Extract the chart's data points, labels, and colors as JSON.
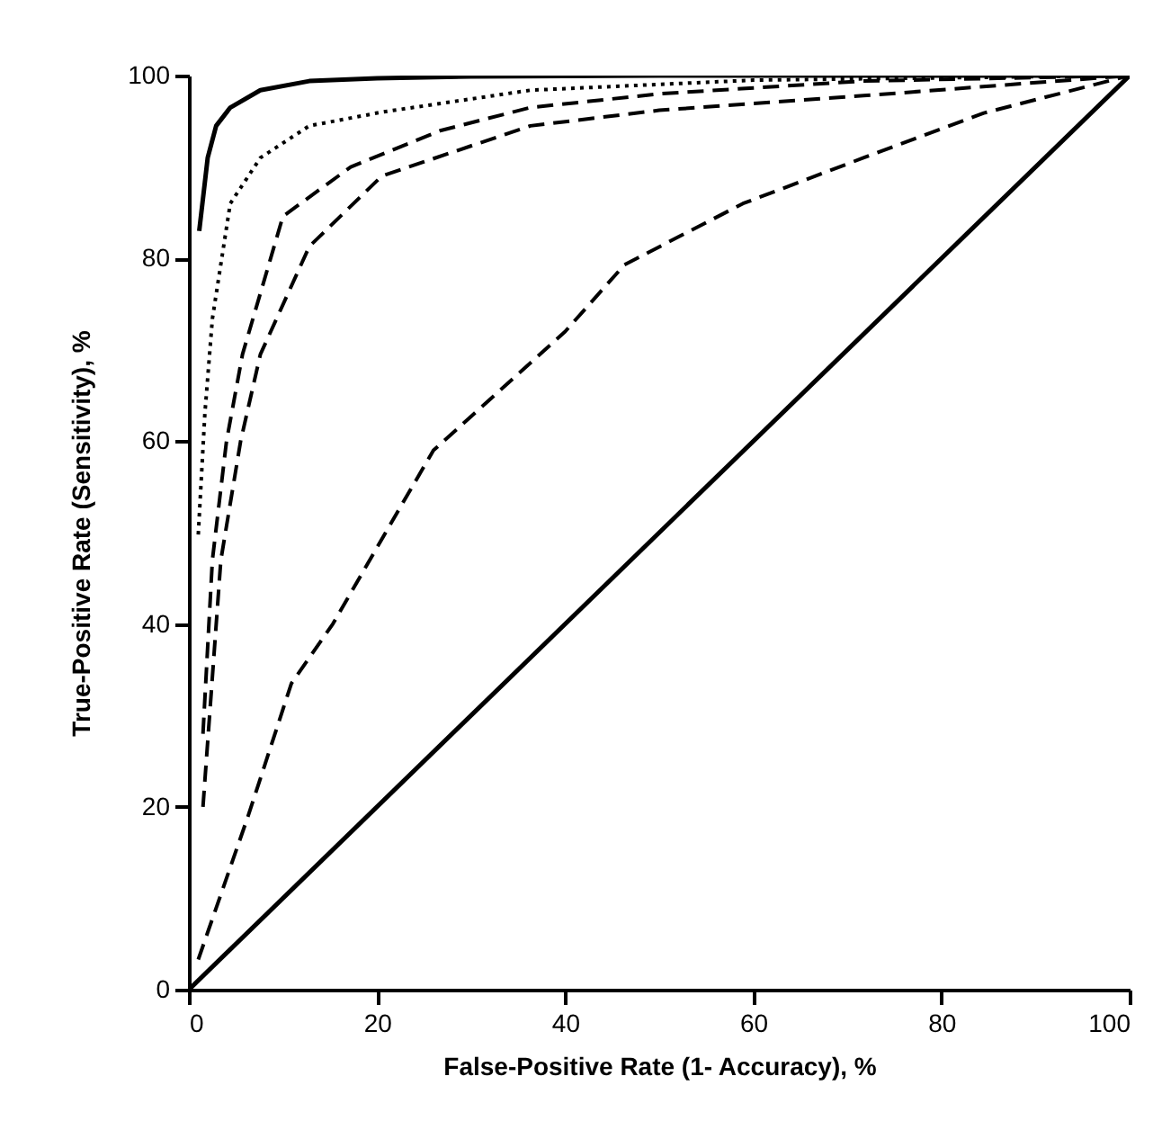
{
  "chart_data": {
    "type": "line",
    "xlabel": "False-Positive Rate (1- Accuracy), %",
    "ylabel": "True-Positive Rate (Sensitivity), %",
    "xlim": [
      0,
      100
    ],
    "ylim": [
      0,
      100
    ],
    "xticks": [
      0,
      20,
      40,
      60,
      80,
      100
    ],
    "yticks": [
      0,
      20,
      40,
      60,
      80,
      100
    ],
    "grid": false,
    "marker": "none",
    "series": [
      {
        "color": "#000000",
        "line_style": "solid",
        "x": [
          1.1,
          2,
          2.9,
          4.4,
          7.6,
          12.8,
          20,
          30,
          50,
          100
        ],
        "values": [
          83,
          91,
          94.5,
          96.5,
          98.4,
          99.4,
          99.7,
          99.9,
          100,
          100
        ]
      },
      {
        "color": "#000000",
        "line_style": "dotted",
        "x": [
          1,
          1.7,
          2.5,
          4.4,
          7.6,
          12.8,
          20.5,
          36.3,
          60,
          100
        ],
        "values": [
          49.8,
          63,
          73.4,
          86,
          91,
          94.5,
          96,
          98.4,
          99.5,
          100
        ]
      },
      {
        "color": "#000000",
        "line_style": "dashed",
        "x": [
          1.5,
          2.5,
          4,
          5.7,
          10,
          17.2,
          26.8,
          36.3,
          50,
          71.7,
          100
        ],
        "values": [
          28,
          47,
          60,
          69.5,
          84.6,
          90,
          94,
          96.5,
          98,
          99.4,
          100
        ]
      },
      {
        "color": "#000000",
        "line_style": "dashed",
        "x": [
          1.5,
          3.4,
          5.5,
          7.6,
          12.8,
          20.5,
          36.3,
          50,
          71.7,
          100
        ],
        "values": [
          20,
          47,
          60,
          69.5,
          81.3,
          89,
          94.5,
          96.2,
          97.8,
          100
        ]
      },
      {
        "color": "#000000",
        "line_style": "dashed",
        "x": [
          1,
          6.3,
          10.9,
          15.3,
          22.6,
          26,
          40,
          46.3,
          58.9,
          71.7,
          84.5,
          100
        ],
        "values": [
          3.3,
          19,
          33.5,
          40,
          53,
          59,
          72,
          79.3,
          86,
          91,
          95.9,
          100
        ]
      },
      {
        "color": "#000000",
        "line_style": "solid",
        "x": [
          0,
          100
        ],
        "values": [
          0,
          100
        ]
      }
    ]
  }
}
